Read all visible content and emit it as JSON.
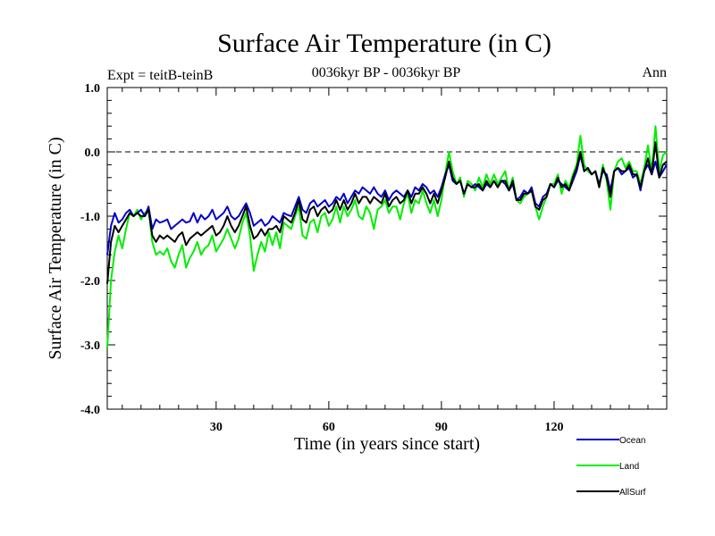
{
  "chart_data": {
    "type": "line",
    "title": "Surface Air Temperature (in C)",
    "subtitle": "0036kyr BP - 0036kyr BP",
    "expt_label": "Expt = teitB-teinB",
    "period_label": "Ann",
    "xlabel": "Time (in years since start)",
    "ylabel": "Surface Air Temperature (in C)",
    "xlim": [
      1,
      150
    ],
    "ylim": [
      -4.0,
      1.0
    ],
    "x_ticks": [
      30,
      60,
      90,
      120
    ],
    "x_tick_labels": [
      "30",
      "60",
      "90",
      "120"
    ],
    "y_ticks": [
      -4.0,
      -3.0,
      -2.0,
      -1.0,
      0.0,
      1.0
    ],
    "y_tick_labels": [
      "-4.0",
      "-3.0",
      "-2.0",
      "-1.0",
      "0.0",
      "1.0"
    ],
    "reference_line": 0.0,
    "x": [
      1,
      2,
      3,
      4,
      5,
      6,
      7,
      8,
      9,
      10,
      11,
      12,
      13,
      14,
      15,
      16,
      17,
      18,
      19,
      20,
      21,
      22,
      23,
      24,
      25,
      26,
      27,
      28,
      29,
      30,
      31,
      32,
      33,
      34,
      35,
      36,
      37,
      38,
      39,
      40,
      41,
      42,
      43,
      44,
      45,
      46,
      47,
      48,
      49,
      50,
      51,
      52,
      53,
      54,
      55,
      56,
      57,
      58,
      59,
      60,
      61,
      62,
      63,
      64,
      65,
      66,
      67,
      68,
      69,
      70,
      71,
      72,
      73,
      74,
      75,
      76,
      77,
      78,
      79,
      80,
      81,
      82,
      83,
      84,
      85,
      86,
      87,
      88,
      89,
      90,
      91,
      92,
      93,
      94,
      95,
      96,
      97,
      98,
      99,
      100,
      101,
      102,
      103,
      104,
      105,
      106,
      107,
      108,
      109,
      110,
      111,
      112,
      113,
      114,
      115,
      116,
      117,
      118,
      119,
      120,
      121,
      122,
      123,
      124,
      125,
      126,
      127,
      128,
      129,
      130,
      131,
      132,
      133,
      134,
      135,
      136,
      137,
      138,
      139,
      140,
      141,
      142,
      143,
      144,
      145,
      146,
      147,
      148,
      149,
      150
    ],
    "series": [
      {
        "name": "Ocean",
        "color": "#0000cc",
        "values": [
          -1.6,
          -1.15,
          -0.95,
          -1.1,
          -1.05,
          -0.95,
          -0.9,
          -1.0,
          -0.95,
          -0.9,
          -1.0,
          -0.85,
          -1.2,
          -1.05,
          -1.1,
          -1.08,
          -1.05,
          -1.2,
          -1.15,
          -1.1,
          -1.05,
          -1.1,
          -1.08,
          -0.95,
          -1.1,
          -0.98,
          -1.05,
          -1.0,
          -0.9,
          -1.05,
          -1.0,
          -0.95,
          -0.85,
          -1.0,
          -1.05,
          -1.0,
          -0.9,
          -0.8,
          -0.95,
          -1.15,
          -1.1,
          -1.05,
          -1.15,
          -1.1,
          -1.0,
          -1.05,
          -1.1,
          -0.95,
          -0.98,
          -1.0,
          -0.85,
          -0.7,
          -0.9,
          -0.95,
          -0.8,
          -0.75,
          -0.85,
          -0.8,
          -0.75,
          -0.85,
          -0.8,
          -0.7,
          -0.75,
          -0.65,
          -0.8,
          -0.7,
          -0.6,
          -0.65,
          -0.55,
          -0.6,
          -0.65,
          -0.55,
          -0.65,
          -0.7,
          -0.6,
          -0.75,
          -0.65,
          -0.6,
          -0.65,
          -0.7,
          -0.6,
          -0.7,
          -0.55,
          -0.6,
          -0.5,
          -0.55,
          -0.65,
          -0.6,
          -0.7,
          -0.55,
          -0.35,
          -0.2,
          -0.45,
          -0.5,
          -0.45,
          -0.65,
          -0.5,
          -0.55,
          -0.5,
          -0.55,
          -0.6,
          -0.5,
          -0.55,
          -0.45,
          -0.55,
          -0.45,
          -0.5,
          -0.6,
          -0.5,
          -0.75,
          -0.7,
          -0.6,
          -0.65,
          -0.55,
          -0.8,
          -0.85,
          -0.7,
          -0.65,
          -0.5,
          -0.55,
          -0.45,
          -0.5,
          -0.55,
          -0.6,
          -0.45,
          -0.3,
          -0.05,
          -0.3,
          -0.25,
          -0.35,
          -0.3,
          -0.5,
          -0.3,
          -0.35,
          -0.6,
          -0.3,
          -0.25,
          -0.35,
          -0.3,
          -0.25,
          -0.4,
          -0.35,
          -0.6,
          -0.3,
          -0.2,
          -0.35,
          -0.15,
          -0.4,
          -0.3,
          -0.2
        ]
      },
      {
        "name": "Land",
        "color": "#00ee00",
        "values": [
          -3.05,
          -2.0,
          -1.55,
          -1.3,
          -1.5,
          -1.2,
          -0.95,
          -1.0,
          -0.9,
          -1.05,
          -0.95,
          -0.9,
          -1.4,
          -1.6,
          -1.55,
          -1.6,
          -1.5,
          -1.7,
          -1.8,
          -1.6,
          -1.45,
          -1.8,
          -1.65,
          -1.55,
          -1.4,
          -1.6,
          -1.5,
          -1.45,
          -1.3,
          -1.55,
          -1.45,
          -1.35,
          -1.2,
          -1.35,
          -1.5,
          -1.35,
          -1.1,
          -0.95,
          -1.3,
          -1.85,
          -1.6,
          -1.4,
          -1.55,
          -1.25,
          -1.45,
          -1.25,
          -1.5,
          -1.1,
          -1.15,
          -1.2,
          -1.0,
          -0.85,
          -1.3,
          -1.35,
          -1.1,
          -1.05,
          -1.25,
          -1.0,
          -0.95,
          -1.15,
          -1.05,
          -0.85,
          -1.1,
          -0.85,
          -1.0,
          -0.9,
          -0.75,
          -1.0,
          -1.05,
          -0.85,
          -0.95,
          -1.2,
          -0.9,
          -0.85,
          -0.75,
          -0.95,
          -0.85,
          -0.85,
          -1.05,
          -0.8,
          -0.65,
          -0.95,
          -0.75,
          -0.8,
          -0.6,
          -0.8,
          -0.95,
          -0.75,
          -1.0,
          -0.75,
          -0.35,
          0.0,
          -0.3,
          -0.5,
          -0.4,
          -0.7,
          -0.45,
          -0.5,
          -0.6,
          -0.4,
          -0.55,
          -0.35,
          -0.5,
          -0.35,
          -0.5,
          -0.4,
          -0.3,
          -0.6,
          -0.4,
          -0.75,
          -0.8,
          -0.7,
          -0.65,
          -0.6,
          -0.85,
          -1.05,
          -0.85,
          -0.7,
          -0.5,
          -0.5,
          -0.35,
          -0.65,
          -0.45,
          -0.55,
          -0.35,
          -0.2,
          0.25,
          -0.2,
          -0.3,
          -0.35,
          -0.3,
          -0.55,
          -0.2,
          -0.45,
          -0.9,
          -0.3,
          -0.15,
          -0.1,
          -0.25,
          -0.15,
          -0.3,
          -0.3,
          -0.5,
          -0.25,
          0.1,
          -0.3,
          0.4,
          -0.3,
          -0.05,
          0.0
        ]
      },
      {
        "name": "AllSurf",
        "color": "#000000",
        "values": [
          -2.05,
          -1.4,
          -1.15,
          -1.25,
          -1.15,
          -1.05,
          -0.95,
          -1.0,
          -0.95,
          -1.0,
          -1.0,
          -0.9,
          -1.3,
          -1.4,
          -1.3,
          -1.35,
          -1.3,
          -1.35,
          -1.4,
          -1.3,
          -1.25,
          -1.45,
          -1.35,
          -1.3,
          -1.25,
          -1.3,
          -1.25,
          -1.2,
          -1.15,
          -1.3,
          -1.25,
          -1.15,
          -1.0,
          -1.15,
          -1.25,
          -1.15,
          -1.0,
          -0.85,
          -1.15,
          -1.35,
          -1.3,
          -1.2,
          -1.3,
          -1.2,
          -1.2,
          -1.15,
          -1.25,
          -1.0,
          -1.05,
          -1.1,
          -0.95,
          -0.75,
          -1.05,
          -1.1,
          -0.9,
          -0.85,
          -1.0,
          -0.9,
          -0.85,
          -0.95,
          -0.9,
          -0.75,
          -0.9,
          -0.75,
          -0.9,
          -0.8,
          -0.65,
          -0.8,
          -0.7,
          -0.7,
          -0.8,
          -0.7,
          -0.75,
          -0.8,
          -0.65,
          -0.85,
          -0.75,
          -0.7,
          -0.8,
          -0.75,
          -0.6,
          -0.8,
          -0.65,
          -0.65,
          -0.55,
          -0.65,
          -0.8,
          -0.65,
          -0.8,
          -0.6,
          -0.4,
          -0.15,
          -0.4,
          -0.5,
          -0.45,
          -0.65,
          -0.5,
          -0.55,
          -0.55,
          -0.5,
          -0.6,
          -0.45,
          -0.55,
          -0.45,
          -0.55,
          -0.45,
          -0.45,
          -0.6,
          -0.45,
          -0.75,
          -0.75,
          -0.65,
          -0.65,
          -0.6,
          -0.85,
          -0.9,
          -0.75,
          -0.7,
          -0.5,
          -0.55,
          -0.4,
          -0.55,
          -0.5,
          -0.6,
          -0.4,
          -0.25,
          0.0,
          -0.3,
          -0.25,
          -0.35,
          -0.3,
          -0.55,
          -0.25,
          -0.4,
          -0.7,
          -0.3,
          -0.25,
          -0.3,
          -0.3,
          -0.2,
          -0.35,
          -0.35,
          -0.55,
          -0.3,
          -0.1,
          -0.35,
          0.15,
          -0.4,
          -0.2,
          -0.15
        ]
      }
    ]
  }
}
